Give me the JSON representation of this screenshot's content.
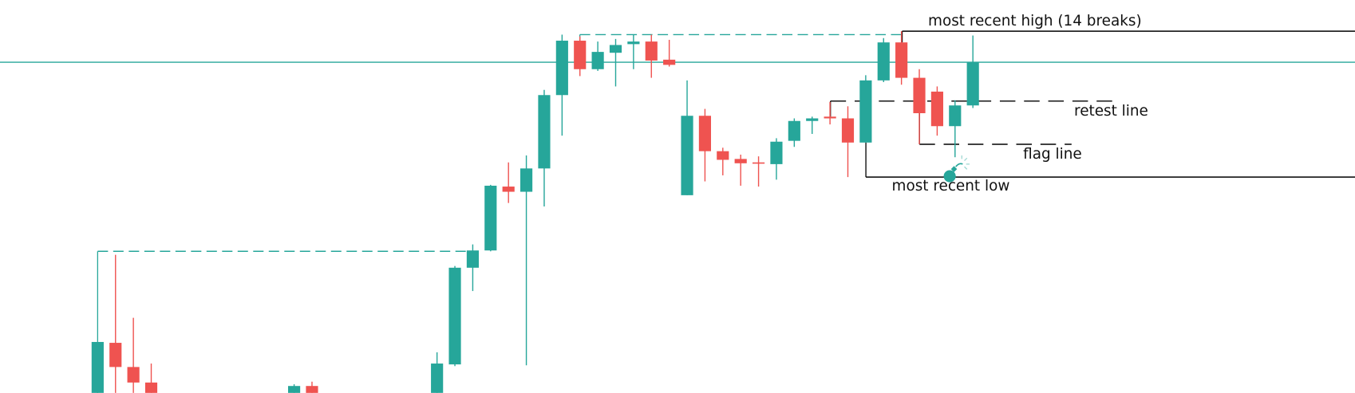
{
  "chart_data": {
    "type": "candlestick",
    "ylim": [
      0,
      455
    ],
    "up_color": "#26a69a",
    "down_color": "#ef5350",
    "open": [
      0,
      58,
      30,
      12,
      null,
      null,
      null,
      null,
      null,
      null,
      null,
      0,
      8,
      null,
      null,
      null,
      null,
      null,
      null,
      0,
      33,
      145,
      165,
      239,
      233,
      260,
      345,
      408,
      375,
      394,
      404,
      407,
      386,
      229,
      321,
      280,
      271,
      267,
      265,
      292,
      315,
      320,
      318,
      290,
      362,
      406,
      365,
      349,
      309,
      333
    ],
    "high": [
      59,
      160,
      87,
      34,
      null,
      null,
      null,
      null,
      null,
      null,
      null,
      10,
      13,
      null,
      null,
      null,
      null,
      null,
      null,
      47,
      147,
      172,
      241,
      267,
      275,
      351,
      415,
      413,
      407,
      410,
      415,
      415,
      409,
      362,
      329,
      284,
      276,
      274,
      295,
      318,
      320,
      337,
      332,
      368,
      411,
      419,
      375,
      355,
      339,
      414
    ],
    "low": [
      0,
      0,
      0,
      0,
      null,
      null,
      null,
      null,
      null,
      null,
      null,
      0,
      0,
      null,
      null,
      null,
      null,
      null,
      null,
      0,
      31,
      118,
      164,
      220,
      32,
      216,
      298,
      367,
      373,
      355,
      375,
      365,
      378,
      229,
      245,
      252,
      240,
      239,
      247,
      285,
      300,
      311,
      250,
      290,
      360,
      357,
      288,
      298,
      273,
      330
    ],
    "close": [
      59,
      30,
      12,
      0,
      null,
      null,
      null,
      null,
      null,
      null,
      null,
      8,
      0,
      null,
      null,
      null,
      null,
      null,
      null,
      34,
      145,
      165,
      240,
      233,
      260,
      345,
      408,
      375,
      395,
      403,
      407,
      385,
      380,
      321,
      280,
      270,
      266,
      266,
      291,
      315,
      318,
      318,
      290,
      362,
      406,
      365,
      324,
      309,
      333,
      383
    ],
    "levels": [
      {
        "value": 383,
        "color": "#26a69a",
        "style": "solid"
      },
      {
        "value": 164,
        "color": "#26a69a",
        "style": "dashed"
      },
      {
        "value": 415,
        "color": "#26a69a",
        "style": "dashed"
      },
      {
        "label": "most recent high (14 breaks)",
        "value": 419,
        "color": "#000000",
        "style": "solid"
      },
      {
        "label": "retest line",
        "value": 338,
        "color": "#000000",
        "style": "dashed"
      },
      {
        "label": "flag line",
        "value": 288,
        "color": "#000000",
        "style": "dashed"
      },
      {
        "label": "most recent low",
        "value": 250,
        "color": "#000000",
        "style": "solid"
      }
    ]
  }
}
